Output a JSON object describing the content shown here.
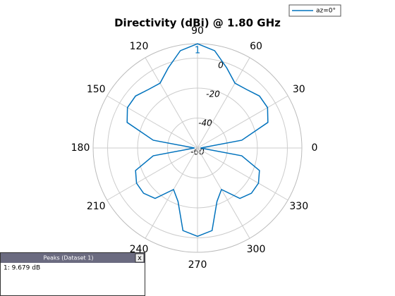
{
  "chart_data": {
    "type": "polar",
    "title": "Directivity (dBi) @ 1.80 GHz",
    "theta": [
      0,
      10,
      20,
      30,
      40,
      50,
      60,
      70,
      80,
      90,
      100,
      110,
      120,
      130,
      140,
      150,
      160,
      170,
      180,
      190,
      200,
      210,
      220,
      230,
      240,
      250,
      260,
      270,
      280,
      290,
      300,
      310,
      320,
      330,
      340,
      350,
      360
    ],
    "series": [
      {
        "name": "az=0°",
        "color": "#0072bd",
        "values": [
          -58,
          -30,
          -10,
          -6,
          -6,
          -9,
          -10,
          -3,
          6,
          9.679,
          6,
          -3,
          -10,
          -9,
          -6,
          -6,
          -10,
          -30,
          -58,
          -30,
          -16,
          -13,
          -13,
          -16,
          -28,
          -22,
          -4,
          -1,
          -4,
          -22,
          -28,
          -16,
          -13,
          -13,
          -16,
          -30,
          -58
        ]
      }
    ],
    "rlim": [
      -60,
      9.679
    ],
    "rticks": [
      0,
      -20,
      -40,
      -60
    ],
    "thetaticks": [
      0,
      30,
      60,
      90,
      120,
      150,
      180,
      210,
      240,
      270,
      300,
      330
    ],
    "grid": true,
    "peak_marker": {
      "label": "1",
      "theta": 90,
      "value": 9.679
    },
    "peaks_panel": {
      "title": "Peaks (Dataset 1)",
      "close_label": "x",
      "rows": [
        "1: 9.679 dB"
      ]
    }
  }
}
